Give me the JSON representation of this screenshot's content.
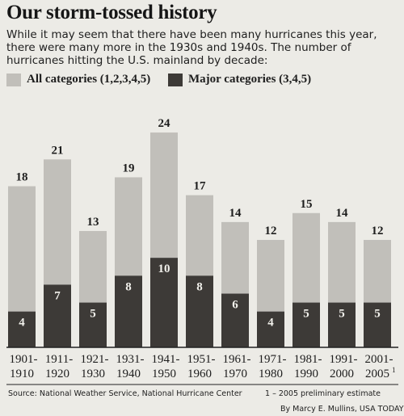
{
  "title": "Our storm-tossed history",
  "subtitle": "While it may seem that there have been many hurricanes this year, there were many more in the 1930s and 1940s. The number of hurricanes hitting the U.S. mainland by decade:",
  "colors": {
    "all": "#c1bfba",
    "major": "#3d3a37",
    "background": "#ecebe6",
    "axis": "#222222"
  },
  "chart_data": {
    "type": "bar",
    "categories": [
      "1901-1910",
      "1911-1920",
      "1921-1930",
      "1931-1940",
      "1941-1950",
      "1951-1960",
      "1961-1970",
      "1971-1980",
      "1981-1990",
      "1991-2000",
      "2001-2005"
    ],
    "category_lines": [
      [
        "1901-",
        "1910"
      ],
      [
        "1911-",
        "1920"
      ],
      [
        "1921-",
        "1930"
      ],
      [
        "1931-",
        "1940"
      ],
      [
        "1941-",
        "1950"
      ],
      [
        "1951-",
        "1960"
      ],
      [
        "1961-",
        "1970"
      ],
      [
        "1971-",
        "1980"
      ],
      [
        "1981-",
        "1990"
      ],
      [
        "1991-",
        "2000"
      ],
      [
        "2001-",
        "2005"
      ]
    ],
    "last_category_footnote_mark": "1",
    "series": [
      {
        "name": "All categories (1,2,3,4,5)",
        "values": [
          18,
          21,
          13,
          19,
          24,
          17,
          14,
          12,
          15,
          14,
          12
        ]
      },
      {
        "name": "Major categories (3,4,5)",
        "values": [
          4,
          7,
          5,
          8,
          10,
          8,
          6,
          4,
          5,
          5,
          5
        ]
      }
    ],
    "ylim": [
      0,
      24
    ],
    "overlay": true,
    "legend": "top-left",
    "grid": false
  },
  "source": "Source: National Weather Service, National Hurricane Center",
  "footnote": "1 – 2005 preliminary estimate",
  "credit": "By Marcy E. Mullins, USA TODAY"
}
